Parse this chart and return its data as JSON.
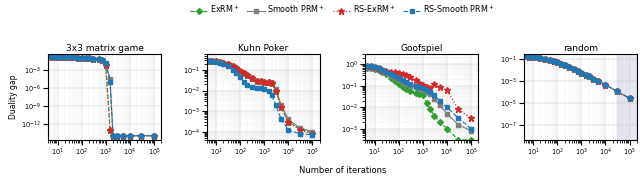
{
  "titles": [
    "3x3 matrix game",
    "Kuhn Poker",
    "Goofspiel",
    "random"
  ],
  "xlabel": "Number of iterations",
  "ylabel": "Duality gap",
  "legend_labels": [
    "ExRM$^+$",
    "Smooth PRM$^+$",
    "RS-ExRM$^+$",
    "RS-Smooth PRM$^+$"
  ],
  "line_colors": [
    "#2ca02c",
    "#7f7f7f",
    "#d62728",
    "#1f77b4"
  ],
  "line_styles": [
    "--",
    "-",
    ":",
    "--"
  ],
  "line_markers": [
    "D",
    "s",
    "*",
    "s"
  ],
  "marker_sizes": [
    3,
    3,
    5,
    3
  ],
  "plot0": {
    "xlim": [
      4,
      200000.0
    ],
    "ylim": [
      2e-15,
      0.4
    ],
    "x": [
      5,
      7,
      10,
      15,
      20,
      30,
      50,
      70,
      100,
      150,
      200,
      300,
      500,
      700,
      1000,
      1500,
      2000,
      3000,
      5000,
      10000,
      30000,
      100000
    ],
    "y_exrm": [
      0.15,
      0.15,
      0.14,
      0.14,
      0.13,
      0.12,
      0.11,
      0.1,
      0.09,
      0.085,
      0.08,
      0.07,
      0.055,
      0.04,
      0.005,
      1e-13,
      1e-14,
      1e-14,
      1e-14,
      1e-14,
      1e-14,
      1e-14
    ],
    "y_sprm": [
      0.15,
      0.15,
      0.14,
      0.14,
      0.13,
      0.12,
      0.11,
      0.1,
      0.09,
      0.085,
      0.08,
      0.07,
      0.055,
      0.04,
      0.008,
      3e-05,
      1e-14,
      1e-14,
      1e-14,
      1e-14,
      1e-14,
      1e-14
    ],
    "y_rsexrm": [
      0.15,
      0.15,
      0.14,
      0.14,
      0.13,
      0.12,
      0.11,
      0.1,
      0.09,
      0.085,
      0.08,
      0.07,
      0.055,
      0.04,
      0.005,
      1e-13,
      1e-14,
      1e-14,
      1e-14,
      1e-14,
      1e-14,
      1e-14
    ],
    "y_rssprm": [
      0.15,
      0.15,
      0.14,
      0.14,
      0.13,
      0.12,
      0.11,
      0.1,
      0.09,
      0.085,
      0.08,
      0.07,
      0.055,
      0.045,
      0.012,
      1e-05,
      1e-14,
      1e-14,
      1e-14,
      1e-14,
      1e-14,
      1e-14
    ]
  },
  "plot1": {
    "xlim": [
      4,
      200000.0
    ],
    "ylim": [
      4e-05,
      0.6
    ],
    "x": [
      5,
      7,
      10,
      15,
      20,
      30,
      50,
      70,
      100,
      150,
      200,
      300,
      500,
      700,
      1000,
      1500,
      2000,
      3000,
      5000,
      10000,
      30000,
      100000
    ],
    "y_exrm": [
      0.28,
      0.27,
      0.26,
      0.24,
      0.22,
      0.19,
      0.15,
      0.12,
      0.09,
      0.07,
      0.055,
      0.04,
      0.03,
      0.028,
      0.027,
      0.025,
      0.022,
      0.01,
      0.0015,
      0.0003,
      0.00013,
      9e-05
    ],
    "y_sprm": [
      0.28,
      0.27,
      0.26,
      0.24,
      0.22,
      0.19,
      0.15,
      0.12,
      0.09,
      0.07,
      0.055,
      0.04,
      0.03,
      0.028,
      0.027,
      0.025,
      0.022,
      0.012,
      0.002,
      0.0004,
      0.00015,
      0.0001
    ],
    "y_rsexrm": [
      0.28,
      0.27,
      0.26,
      0.24,
      0.22,
      0.19,
      0.15,
      0.12,
      0.09,
      0.07,
      0.055,
      0.04,
      0.03,
      0.028,
      0.027,
      0.025,
      0.022,
      0.01,
      0.0015,
      0.0003,
      0.00012,
      8e-05
    ],
    "y_rssprm": [
      0.28,
      0.27,
      0.25,
      0.22,
      0.19,
      0.15,
      0.1,
      0.07,
      0.045,
      0.025,
      0.018,
      0.015,
      0.014,
      0.013,
      0.012,
      0.009,
      0.006,
      0.002,
      0.0004,
      0.00012,
      8e-05,
      7e-05
    ]
  },
  "plot2": {
    "xlim": [
      4,
      200000.0
    ],
    "ylim": [
      0.0003,
      3
    ],
    "x": [
      5,
      7,
      10,
      15,
      20,
      30,
      50,
      70,
      100,
      150,
      200,
      300,
      500,
      700,
      1000,
      1500,
      2000,
      3000,
      5000,
      10000,
      30000,
      100000
    ],
    "y_exrm": [
      0.7,
      0.65,
      0.6,
      0.55,
      0.45,
      0.35,
      0.22,
      0.16,
      0.12,
      0.09,
      0.07,
      0.055,
      0.045,
      0.04,
      0.038,
      0.015,
      0.008,
      0.004,
      0.002,
      0.001,
      0.0003,
      0.0003
    ],
    "y_sprm": [
      0.7,
      0.65,
      0.6,
      0.55,
      0.45,
      0.38,
      0.28,
      0.22,
      0.18,
      0.14,
      0.12,
      0.1,
      0.085,
      0.075,
      0.065,
      0.05,
      0.04,
      0.025,
      0.012,
      0.005,
      0.0015,
      0.0008
    ],
    "y_rsexrm": [
      0.85,
      0.8,
      0.75,
      0.65,
      0.55,
      0.5,
      0.45,
      0.42,
      0.38,
      0.35,
      0.3,
      0.25,
      0.18,
      0.14,
      0.11,
      0.09,
      0.08,
      0.12,
      0.09,
      0.06,
      0.008,
      0.003
    ],
    "y_rssprm": [
      0.85,
      0.8,
      0.75,
      0.65,
      0.55,
      0.45,
      0.35,
      0.28,
      0.22,
      0.18,
      0.15,
      0.12,
      0.1,
      0.085,
      0.075,
      0.06,
      0.05,
      0.035,
      0.02,
      0.01,
      0.003,
      0.001
    ]
  },
  "plot3": {
    "xlim": [
      4,
      200000.0
    ],
    "ylim": [
      5e-09,
      0.3
    ],
    "x": [
      5,
      7,
      10,
      15,
      20,
      30,
      50,
      70,
      100,
      150,
      200,
      300,
      500,
      700,
      1000,
      1500,
      2000,
      3000,
      5000,
      10000,
      30000,
      100000
    ],
    "y_all": [
      0.18,
      0.17,
      0.16,
      0.15,
      0.13,
      0.11,
      0.085,
      0.068,
      0.052,
      0.038,
      0.03,
      0.021,
      0.013,
      0.009,
      0.006,
      0.004,
      0.003,
      0.0018,
      0.001,
      0.0005,
      0.00012,
      3e-05
    ]
  },
  "shaded_region": {
    "x_start": 30000,
    "x_end": 200000,
    "color": "#c8c8e8",
    "alpha": 0.45
  }
}
